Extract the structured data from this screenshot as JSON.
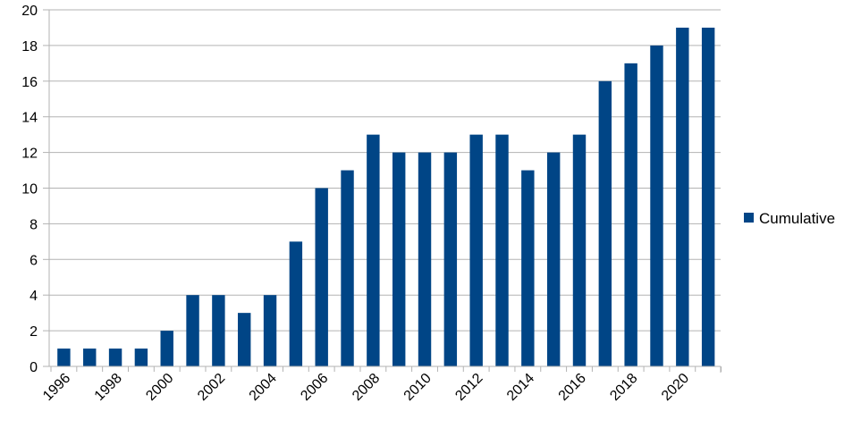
{
  "chart_data": {
    "type": "bar",
    "title": "",
    "xlabel": "",
    "ylabel": "",
    "categories": [
      "1996",
      "1997",
      "1998",
      "1999",
      "2000",
      "2001",
      "2002",
      "2003",
      "2004",
      "2005",
      "2006",
      "2007",
      "2008",
      "2009",
      "2010",
      "2011",
      "2012",
      "2013",
      "2014",
      "2015",
      "2016",
      "2017",
      "2018",
      "2019",
      "2020",
      "2021"
    ],
    "x_tick_labels": [
      "1996",
      "1998",
      "2000",
      "2002",
      "2004",
      "2006",
      "2008",
      "2010",
      "2012",
      "2014",
      "2016",
      "2018",
      "2020"
    ],
    "series": [
      {
        "name": "Cumulative",
        "color": "#004586",
        "values": [
          1,
          1,
          1,
          1,
          2,
          4,
          4,
          3,
          4,
          7,
          10,
          11,
          13,
          12,
          12,
          12,
          13,
          13,
          11,
          12,
          13,
          16,
          17,
          18,
          19,
          19
        ]
      }
    ],
    "ylim": [
      0,
      20
    ],
    "y_ticks": [
      0,
      2,
      4,
      6,
      8,
      10,
      12,
      14,
      16,
      18,
      20
    ],
    "grid": true,
    "legend": "right"
  }
}
